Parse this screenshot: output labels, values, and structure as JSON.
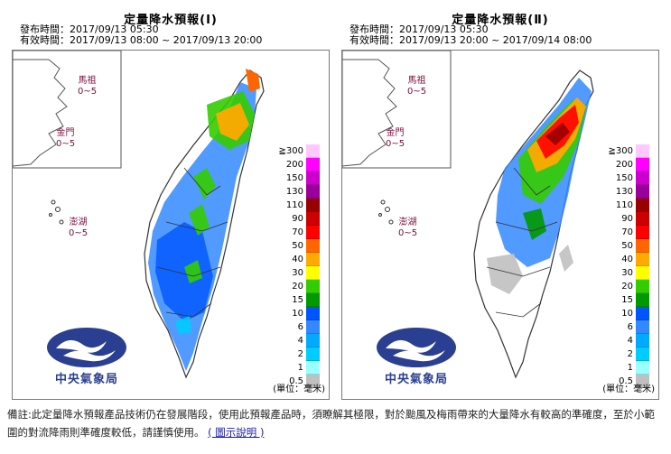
{
  "panels": [
    {
      "title": "定量降水預報(Ⅰ)",
      "issued": "發布時間：2017/09/13 05:30",
      "valid": "有效時間：2017/09/13 08:00 ~ 2017/09/13 20:00",
      "islands": {
        "matsu_name": "馬祖",
        "matsu_value": "0~5",
        "kinmen_name": "金門",
        "kinmen_value": "0~5",
        "penghu_name": "澎湖",
        "penghu_value": "0~5"
      },
      "unit": "(單位：毫米)",
      "logo_text": "中央氣象局"
    },
    {
      "title": "定量降水預報(Ⅱ)",
      "issued": "發布時間：2017/09/13 05:30",
      "valid": "有效時間：2017/09/13 20:00 ~ 2017/09/14 08:00",
      "islands": {
        "matsu_name": "馬祖",
        "matsu_value": "0~5",
        "kinmen_name": "金門",
        "kinmen_value": "0~5",
        "penghu_name": "澎湖",
        "penghu_value": "0~5"
      },
      "unit": "(單位：毫米)",
      "logo_text": "中央氣象局"
    }
  ],
  "legend": [
    {
      "label": "≧300",
      "color": "#ffc8ff"
    },
    {
      "label": "200",
      "color": "#ff00ff"
    },
    {
      "label": "150",
      "color": "#cc00cc"
    },
    {
      "label": "130",
      "color": "#990099"
    },
    {
      "label": "110",
      "color": "#990000"
    },
    {
      "label": "90",
      "color": "#cc0000"
    },
    {
      "label": "70",
      "color": "#ff0000"
    },
    {
      "label": "50",
      "color": "#ff6600"
    },
    {
      "label": "40",
      "color": "#ffaa00"
    },
    {
      "label": "30",
      "color": "#ffff00"
    },
    {
      "label": "20",
      "color": "#33cc00"
    },
    {
      "label": "15",
      "color": "#009900"
    },
    {
      "label": "10",
      "color": "#0055ff"
    },
    {
      "label": "6",
      "color": "#3388ff"
    },
    {
      "label": "4",
      "color": "#00aaff"
    },
    {
      "label": "2",
      "color": "#00ccff"
    },
    {
      "label": "1",
      "color": "#99ffff"
    },
    {
      "label": "0.5",
      "color": "#c0c0c0"
    }
  ],
  "footer": {
    "note": "備註:此定量降水預報產品技術仍在發展階段，使用此預報產品時，須瞭解其極限，對於颱風及梅雨帶來的大量降水有較高的準確度，至於小範圍的對流降雨則準確度較低，請謹慎使用。",
    "link_label": "( 圖示說明 )"
  }
}
